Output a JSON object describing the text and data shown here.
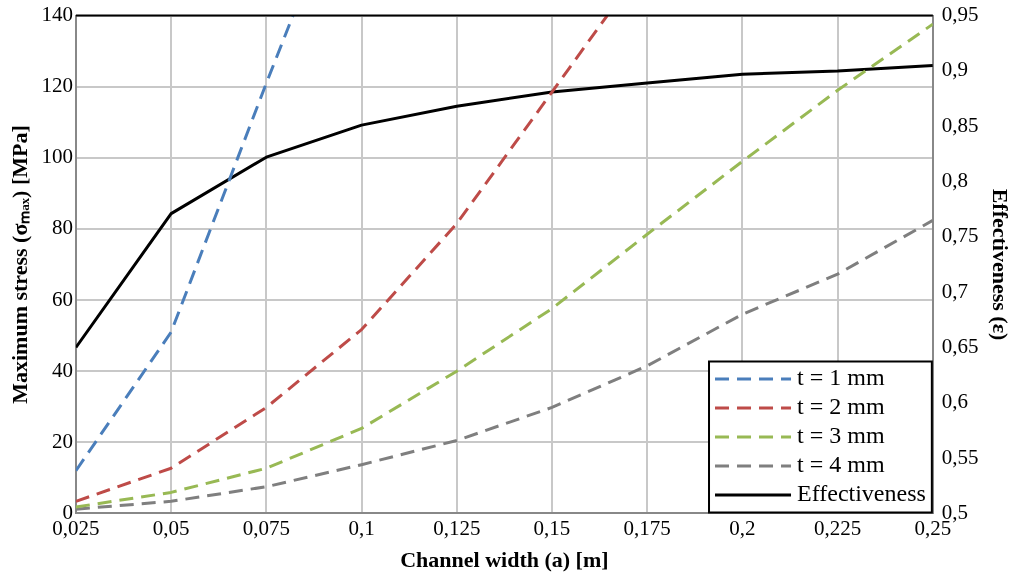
{
  "chart_data": {
    "type": "line",
    "xlabel": "Channel width (a) [m]",
    "ylabel": "Maximum stress (σₘₐₓ) [MPa]",
    "y2label": "Effectiveness (ε)",
    "x": [
      0.025,
      0.05,
      0.075,
      0.1,
      0.125,
      0.15,
      0.175,
      0.2,
      0.225,
      0.25
    ],
    "series": [
      {
        "name": "t = 1 mm",
        "color": "#4a7ebb",
        "line_style": "dashed",
        "x": [
          0.025,
          0.05,
          0.075,
          0.082
        ],
        "values": [
          12,
          51,
          121,
          140
        ]
      },
      {
        "name": "t = 2 mm",
        "color": "#be4b48",
        "line_style": "dashed",
        "x": [
          0.025,
          0.05,
          0.075,
          0.1,
          0.125,
          0.15,
          0.1645
        ],
        "values": [
          3.4,
          12.7,
          29.8,
          51.7,
          81.5,
          118.5,
          140
        ]
      },
      {
        "name": "t = 3 mm",
        "color": "#98b954",
        "line_style": "dashed",
        "values": [
          1.8,
          5.9,
          12.7,
          23.9,
          40,
          57.6,
          78.5,
          99,
          119,
          137.6
        ]
      },
      {
        "name": "t = 4 mm",
        "color": "#7f7f7f",
        "line_style": "dashed",
        "values": [
          1.2,
          3.4,
          7.5,
          13.7,
          20.5,
          29.8,
          41.5,
          56,
          67.3,
          82.4
        ]
      },
      {
        "name": "Effectiveness",
        "color": "#000000",
        "line_style": "solid",
        "axis": "y2",
        "values": [
          0.65,
          0.771,
          0.822,
          0.851,
          0.868,
          0.881,
          0.889,
          0.897,
          0.9,
          0.905
        ]
      }
    ],
    "xlim": [
      0.025,
      0.25
    ],
    "xticks": [
      {
        "value": 0.025,
        "label": "0,025"
      },
      {
        "value": 0.05,
        "label": "0,05"
      },
      {
        "value": 0.075,
        "label": "0,075"
      },
      {
        "value": 0.1,
        "label": "0,1"
      },
      {
        "value": 0.125,
        "label": "0,125"
      },
      {
        "value": 0.15,
        "label": "0,15"
      },
      {
        "value": 0.175,
        "label": "0,175"
      },
      {
        "value": 0.2,
        "label": "0,2"
      },
      {
        "value": 0.225,
        "label": "0,225"
      },
      {
        "value": 0.25,
        "label": "0,25"
      }
    ],
    "ylim": [
      0,
      140
    ],
    "yticks": [
      0,
      20,
      40,
      60,
      80,
      100,
      120,
      140
    ],
    "y2lim": [
      0.5,
      0.95
    ],
    "y2ticks": [
      {
        "value": 0.5,
        "label": "0,5"
      },
      {
        "value": 0.55,
        "label": "0,55"
      },
      {
        "value": 0.6,
        "label": "0,6"
      },
      {
        "value": 0.65,
        "label": "0,65"
      },
      {
        "value": 0.7,
        "label": "0,7"
      },
      {
        "value": 0.75,
        "label": "0,75"
      },
      {
        "value": 0.8,
        "label": "0,8"
      },
      {
        "value": 0.85,
        "label": "0,85"
      },
      {
        "value": 0.9,
        "label": "0,9"
      },
      {
        "value": 0.95,
        "label": "0,95"
      }
    ],
    "grid": true,
    "legend": "bottom right",
    "marker": "none"
  }
}
